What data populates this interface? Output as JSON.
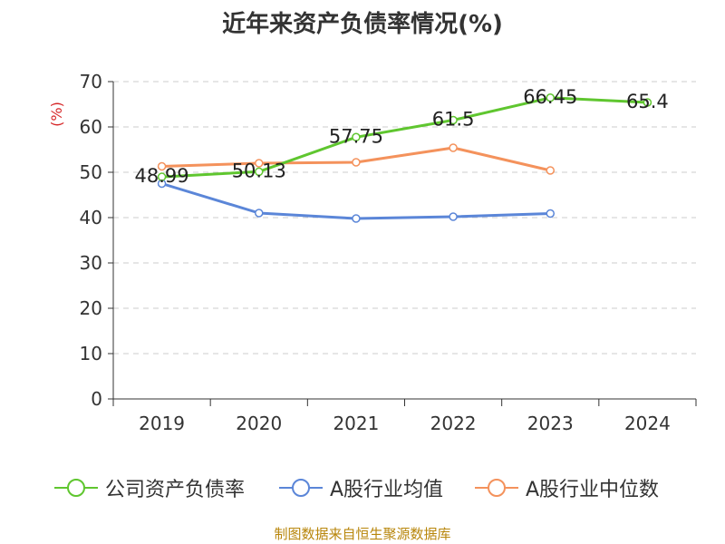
{
  "chart_data": {
    "type": "line",
    "title": "近年来资产负债率情况(%)",
    "ylabel": "(%)",
    "ylim": [
      0,
      70
    ],
    "yticks": [
      0,
      10,
      20,
      30,
      40,
      50,
      60,
      70
    ],
    "categories": [
      "2019",
      "2020",
      "2021",
      "2022",
      "2023",
      "2024"
    ],
    "grid": true,
    "legend_position": "bottom",
    "series": [
      {
        "name": "公司资产负债率",
        "color": "#5fc62f",
        "values": [
          48.99,
          50.13,
          57.75,
          61.5,
          66.45,
          65.4
        ],
        "labels": [
          "48.99",
          "50.13",
          "57.75",
          "61.5",
          "66.45",
          "65.4"
        ]
      },
      {
        "name": "A股行业均值",
        "color": "#5b86d8",
        "values": [
          47.5,
          41.0,
          39.8,
          40.2,
          40.9,
          null
        ]
      },
      {
        "name": "A股行业中位数",
        "color": "#f4925c",
        "values": [
          51.3,
          52.0,
          52.2,
          55.4,
          50.4,
          null
        ]
      }
    ]
  },
  "source": "制图数据来自恒生聚源数据库"
}
